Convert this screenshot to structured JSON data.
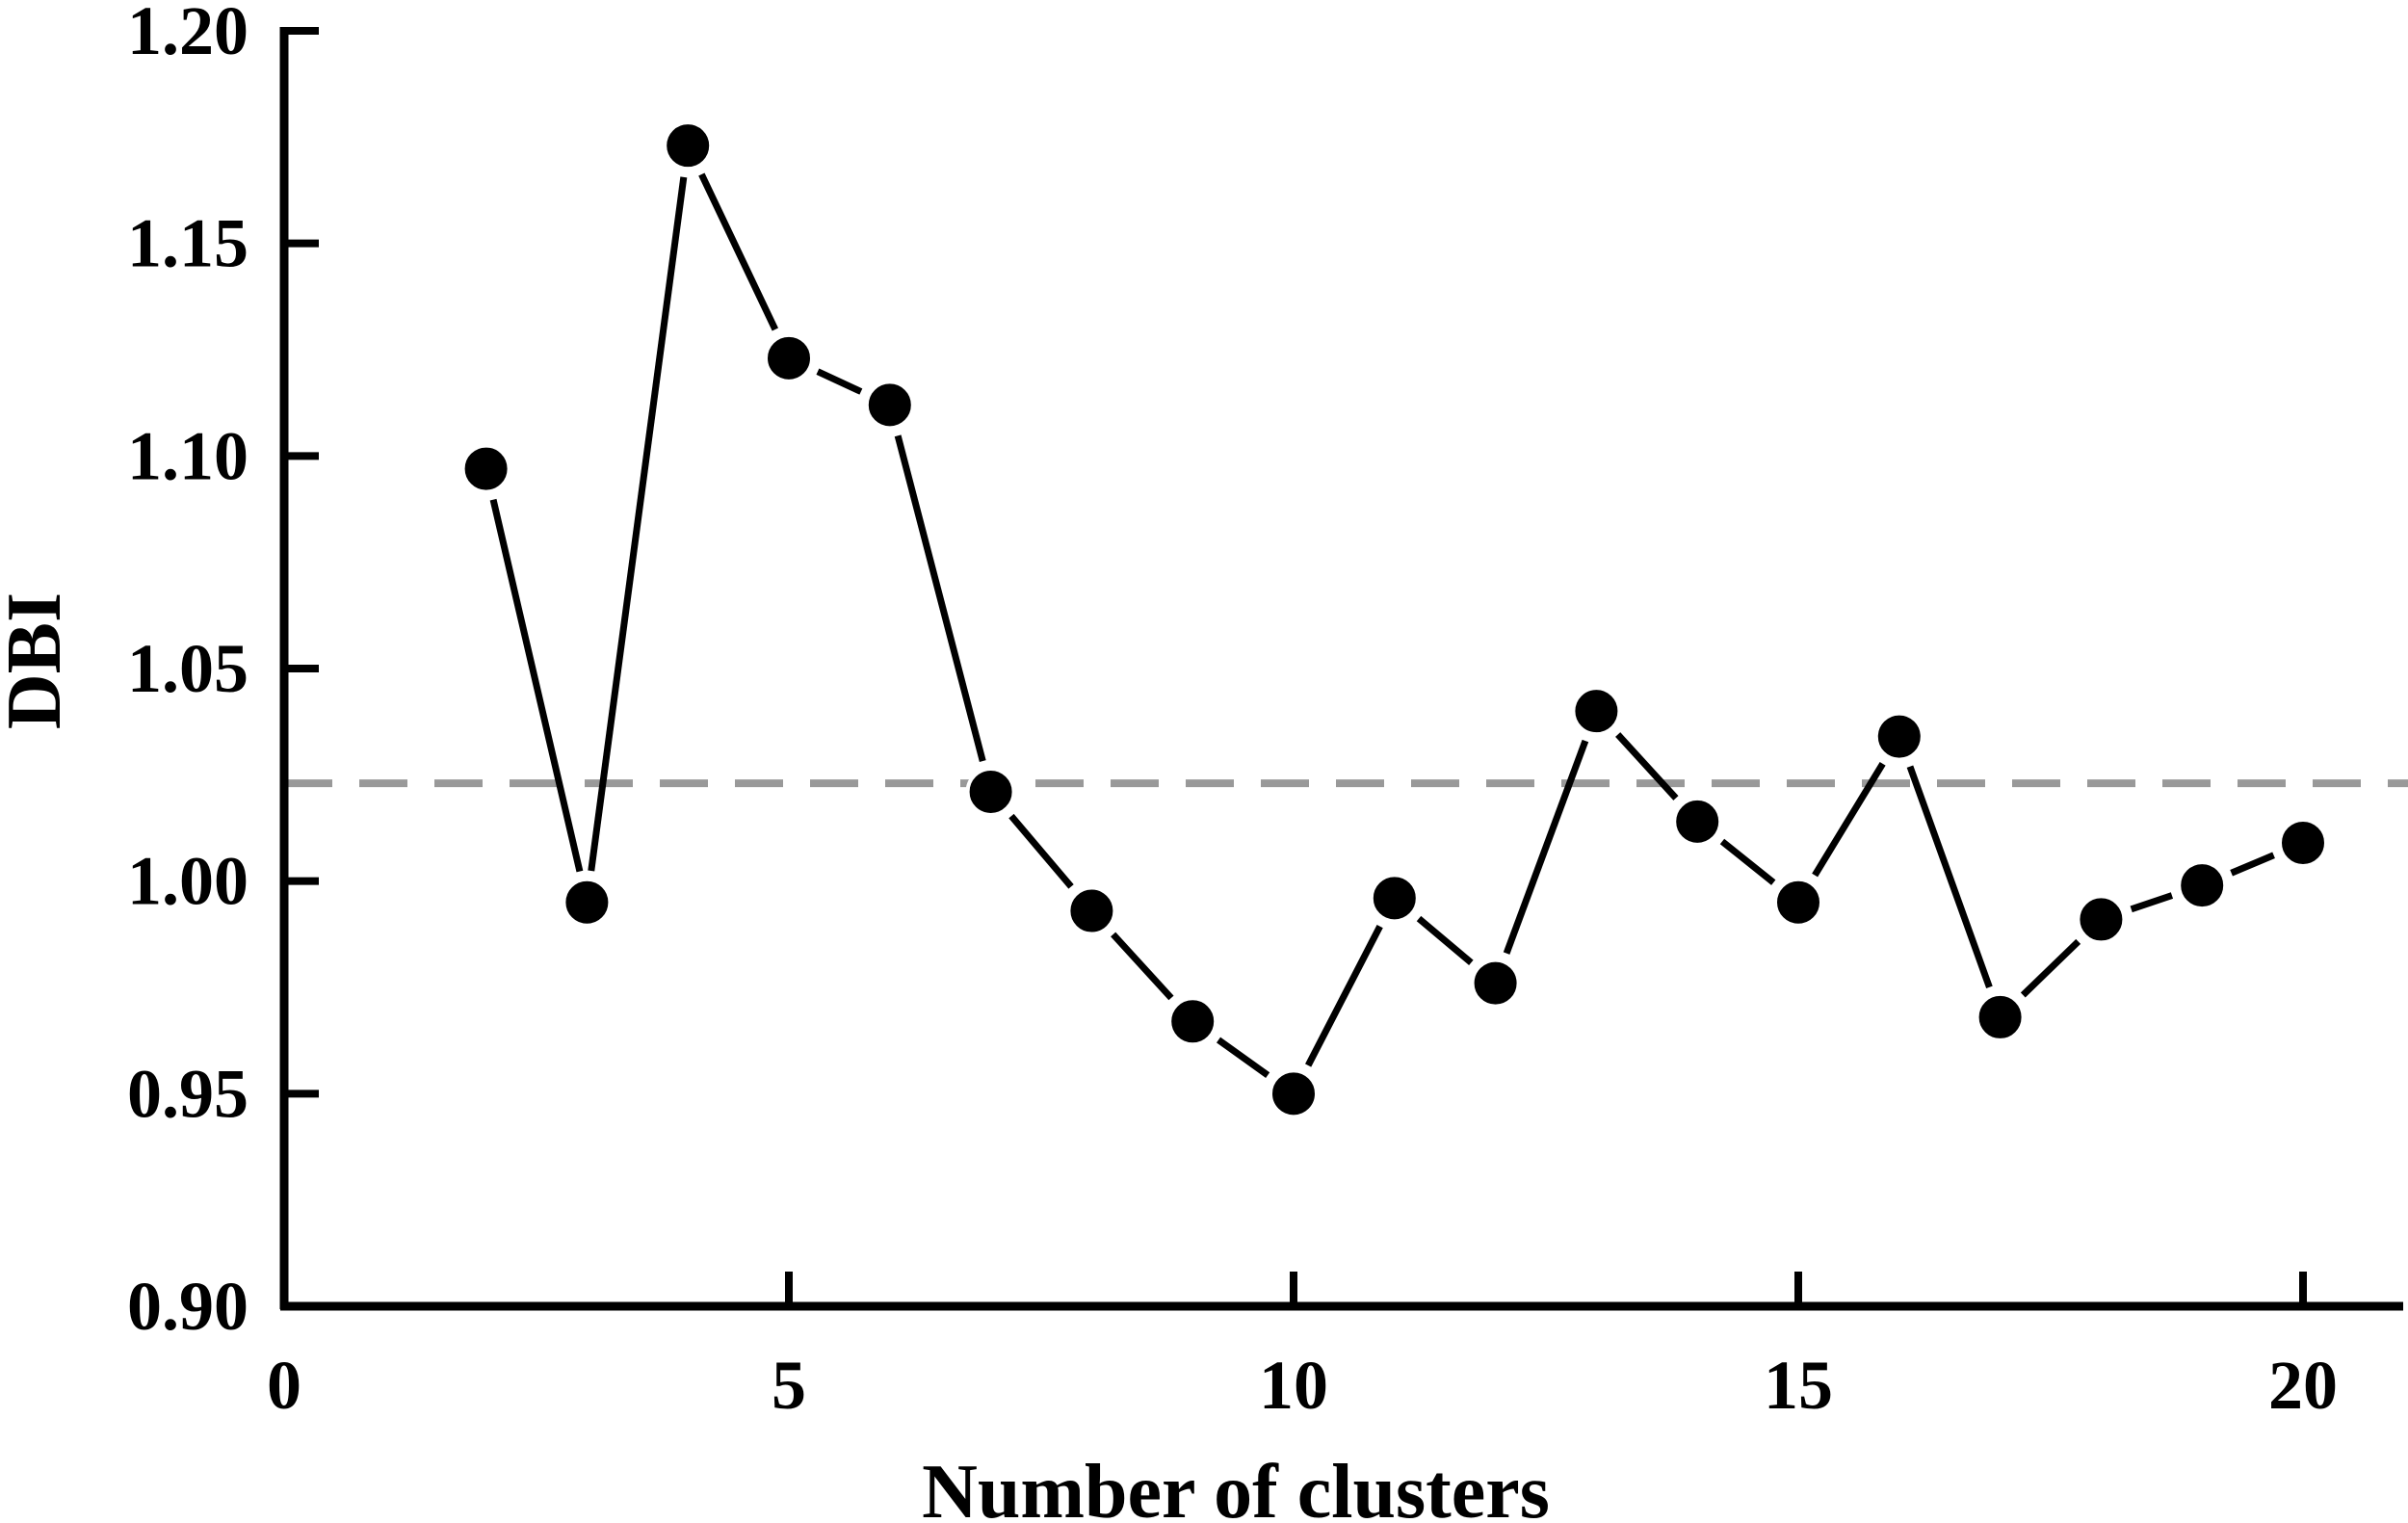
{
  "chart_data": {
    "type": "line",
    "xlabel": "Number of clusters",
    "ylabel": "DBI",
    "xlim": [
      0,
      21
    ],
    "ylim": [
      0.9,
      1.2
    ],
    "xticks": [
      0,
      5,
      10,
      15,
      20
    ],
    "xtick_labels": [
      "0",
      "5",
      "10",
      "15",
      "20"
    ],
    "yticks": [
      0.9,
      0.95,
      1.0,
      1.05,
      1.1,
      1.15,
      1.2
    ],
    "ytick_labels": [
      "0.90",
      "0.95",
      "1.00",
      "1.05",
      "1.10",
      "1.15",
      "1.20"
    ],
    "grid": false,
    "series": [
      {
        "x": [
          2,
          3,
          4,
          5,
          6,
          7,
          8,
          9,
          10,
          11,
          12,
          13,
          14,
          15,
          16,
          17,
          18,
          19,
          20
        ],
        "y": [
          1.097,
          0.995,
          1.173,
          1.123,
          1.112,
          1.021,
          0.993,
          0.967,
          0.95,
          0.996,
          0.976,
          1.04,
          1.014,
          0.995,
          1.034,
          0.968,
          0.991,
          0.999,
          1.009
        ],
        "color": "#000000",
        "marker": "circle"
      }
    ],
    "reference_line": {
      "y": 1.023,
      "style": "dashed",
      "color": "#999999"
    }
  }
}
